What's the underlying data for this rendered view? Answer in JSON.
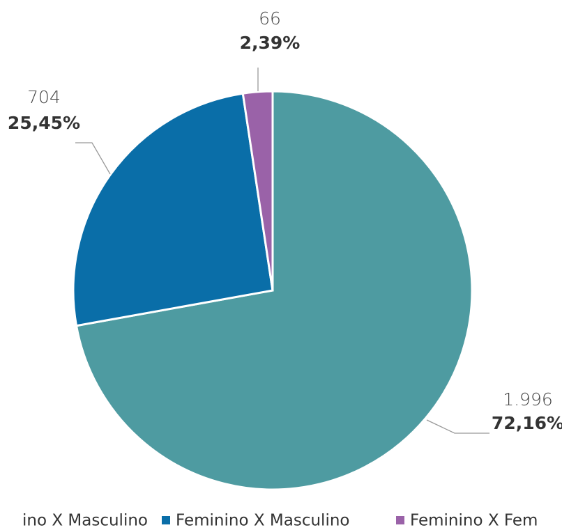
{
  "chart_data": {
    "type": "pie",
    "categories": [
      "ino X Masculino",
      "Feminino X Masculino",
      "Feminino X Fem"
    ],
    "values": [
      1996,
      704,
      66
    ],
    "value_labels": [
      "1.996",
      "704",
      "66"
    ],
    "percentages": [
      72.16,
      25.45,
      2.39
    ],
    "percentage_labels": [
      "72,16%",
      "25,45%",
      "2,39%"
    ],
    "colors": [
      "#4e9ba1",
      "#0a6ea8",
      "#9a62a8"
    ],
    "legend": "bottom"
  }
}
